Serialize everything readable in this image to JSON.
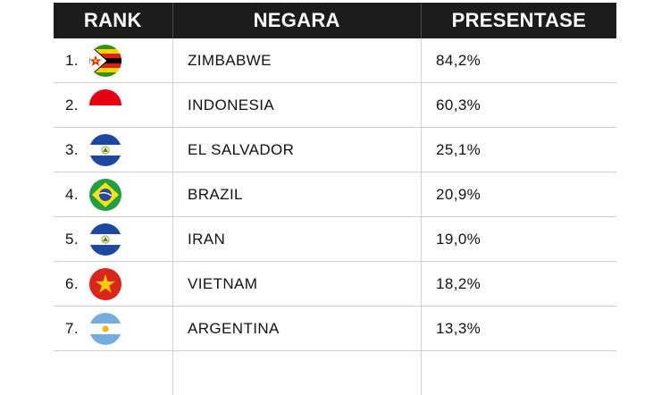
{
  "table": {
    "headers": {
      "rank": "RANK",
      "country": "NEGARA",
      "percent": "PRESENTASE"
    },
    "rows": [
      {
        "rank": "1.",
        "country": "ZIMBABWE",
        "percent": "84,2%",
        "flag_icon": "zimbabwe-flag-icon"
      },
      {
        "rank": "2.",
        "country": "INDONESIA",
        "percent": "60,3%",
        "flag_icon": "indonesia-flag-icon"
      },
      {
        "rank": "3.",
        "country": "EL SALVADOR",
        "percent": "25,1%",
        "flag_icon": "el-salvador-flag-icon"
      },
      {
        "rank": "4.",
        "country": "BRAZIL",
        "percent": "20,9%",
        "flag_icon": "brazil-flag-icon"
      },
      {
        "rank": "5.",
        "country": "IRAN",
        "percent": "19,0%",
        "flag_icon": "el-salvador-flag-icon"
      },
      {
        "rank": "6.",
        "country": "VIETNAM",
        "percent": "18,2%",
        "flag_icon": "vietnam-flag-icon"
      },
      {
        "rank": "7.",
        "country": "ARGENTINA",
        "percent": "13,3%",
        "flag_icon": "argentina-flag-icon"
      }
    ]
  },
  "colors": {
    "header_bg": "#1c1c1c",
    "header_text": "#ffffff",
    "row_border": "#cfcfcf"
  }
}
